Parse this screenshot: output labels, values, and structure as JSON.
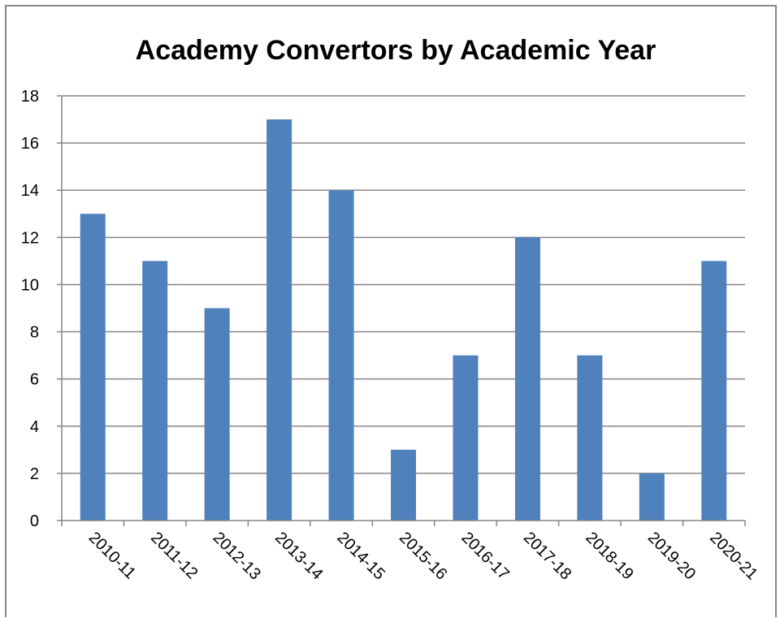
{
  "chart_data": {
    "type": "bar",
    "title": "Academy Convertors by Academic Year",
    "xlabel": "",
    "ylabel": "",
    "categories": [
      "2010-11",
      "2011-12",
      "2012-13",
      "2013-14",
      "2014-15",
      "2015-16",
      "2016-17",
      "2017-18",
      "2018-19",
      "2019-20",
      "2020-21"
    ],
    "values": [
      13,
      11,
      9,
      17,
      14,
      3,
      7,
      12,
      7,
      2,
      11
    ],
    "ylim": [
      0,
      18
    ],
    "yticks": [
      "0",
      "2",
      "4",
      "6",
      "8",
      "10",
      "12",
      "14",
      "16",
      "18"
    ],
    "grid": true,
    "legend": "none",
    "bar_color": "#4F81BD",
    "gridline_color": "#868686"
  }
}
